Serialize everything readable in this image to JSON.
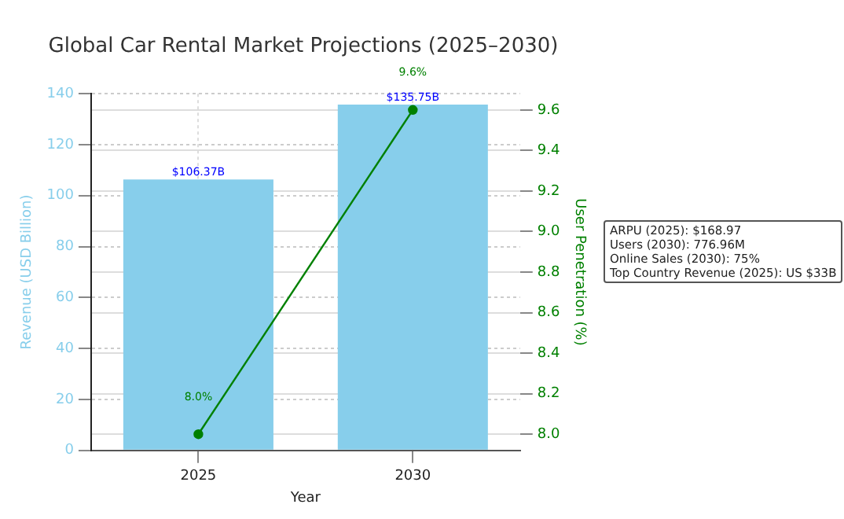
{
  "chart_data": {
    "type": "bar",
    "title": "Global Car Rental Market Projections (2025–2030)",
    "xlabel": "Year",
    "ylabel": "Revenue (USD Billion)",
    "y2label": "User Penetration (%)",
    "categories": [
      "2025",
      "2030"
    ],
    "series": [
      {
        "color": "#87ceeb",
        "values": [
          106.37,
          135.75
        ],
        "value_labels": [
          "$106.37B",
          "$135.75B"
        ]
      },
      {
        "type": "line",
        "axis": "y2",
        "color": "#008000",
        "values": [
          8.0,
          9.6
        ],
        "value_labels": [
          "8.0%",
          "9.6%"
        ]
      }
    ],
    "ylim": [
      0,
      140
    ],
    "yticks": [
      0,
      20,
      40,
      60,
      80,
      100,
      120,
      140
    ],
    "y2lim": [
      7.92,
      9.68
    ],
    "y2ticks": [
      {
        "value": 8.0,
        "label": "8.0"
      },
      {
        "value": 8.2,
        "label": "8.2"
      },
      {
        "value": 8.4,
        "label": "8.4"
      },
      {
        "value": 8.6,
        "label": "8.6"
      },
      {
        "value": 8.8,
        "label": "8.8"
      },
      {
        "value": 9.0,
        "label": "9.0"
      },
      {
        "value": 9.2,
        "label": "9.2"
      },
      {
        "value": 9.4,
        "label": "9.4"
      },
      {
        "value": 9.6,
        "label": "9.6"
      }
    ],
    "annotations": [
      "ARPU (2025): $168.97",
      "Users (2030): 776.96M",
      "Online Sales (2030): 75%",
      "Top Country Revenue (2025): US $33B"
    ],
    "grid": true,
    "legend": false,
    "marker": "circle"
  }
}
